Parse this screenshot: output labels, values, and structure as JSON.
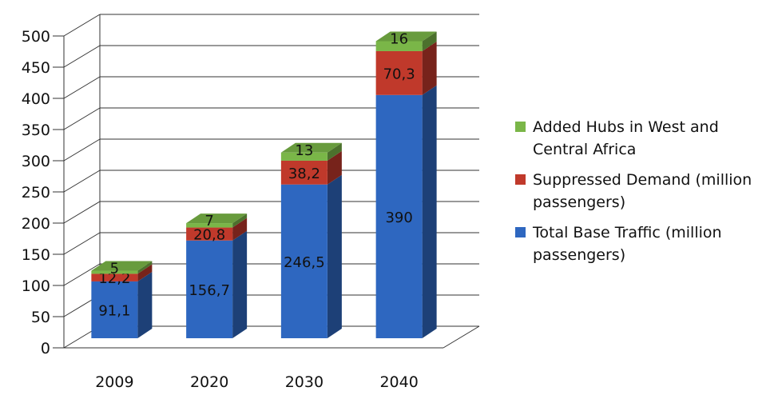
{
  "chart_data": {
    "type": "bar",
    "stacked": true,
    "three_d": true,
    "categories": [
      "2009",
      "2020",
      "2030",
      "2040"
    ],
    "series": [
      {
        "name": "Total Base Traffic (million passengers)",
        "values": [
          91.1,
          156.7,
          246.5,
          390
        ],
        "labels": [
          "91,1",
          "156,7",
          "246,5",
          "390"
        ],
        "color": "#2e67c0"
      },
      {
        "name": "Suppressed Demand (million passengers)",
        "values": [
          12.2,
          20.8,
          38.2,
          70.3
        ],
        "labels": [
          "12,2",
          "20,8",
          "38,2",
          "70,3"
        ],
        "color": "#c0392b"
      },
      {
        "name": "Added Hubs in West and Central Africa",
        "values": [
          5,
          7,
          13,
          16
        ],
        "labels": [
          "5",
          "7",
          "13",
          "16"
        ],
        "color": "#7ab648"
      }
    ],
    "y_ticks": [
      "0",
      "50",
      "100",
      "150",
      "200",
      "250",
      "300",
      "350",
      "400",
      "450",
      "500"
    ],
    "ylim": [
      0,
      500
    ],
    "title": "",
    "xlabel": "",
    "ylabel": "",
    "grid": true,
    "legend_position": "right"
  },
  "legend": {
    "items": [
      {
        "label_line1": "Added Hubs in West and",
        "label_line2": "Central Africa",
        "color": "#7ab648"
      },
      {
        "label_line1": "Suppressed Demand (million",
        "label_line2": "passengers)",
        "color": "#c0392b"
      },
      {
        "label_line1": "Total Base Traffic (million",
        "label_line2": "passengers)",
        "color": "#2e67c0"
      }
    ]
  }
}
